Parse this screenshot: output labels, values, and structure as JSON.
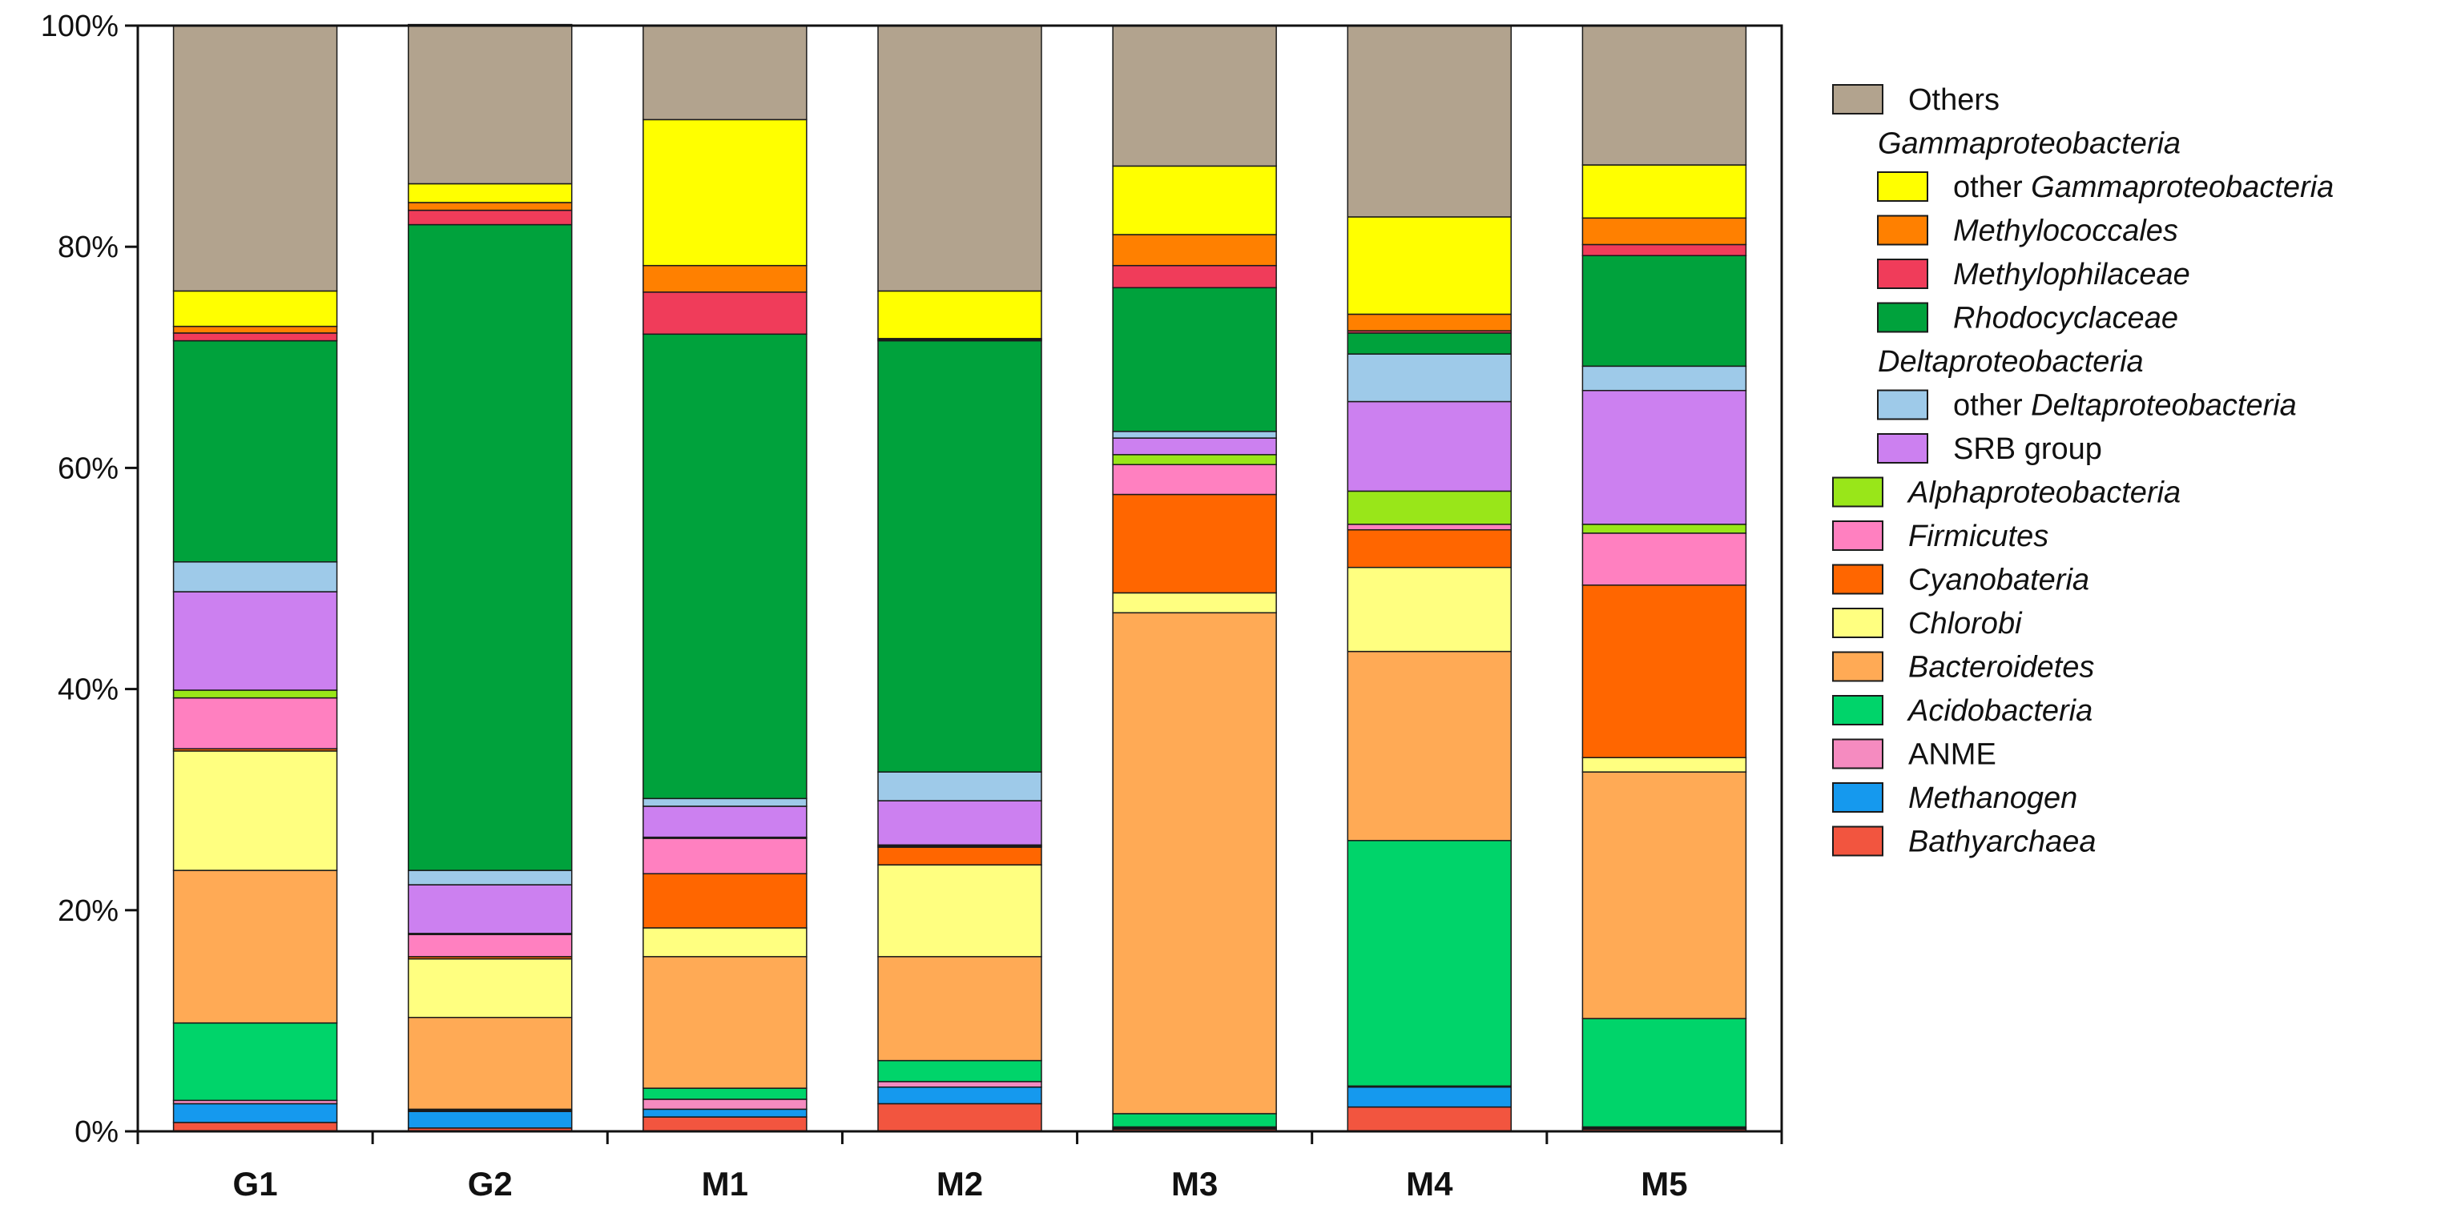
{
  "chart_data": {
    "type": "bar",
    "stacked": true,
    "percent": true,
    "categories": [
      "G1",
      "G2",
      "M1",
      "M2",
      "M3",
      "M4",
      "M5"
    ],
    "ylim": [
      0,
      100
    ],
    "yticks": [
      0,
      20,
      40,
      60,
      80,
      100
    ],
    "ytick_labels": [
      "0%",
      "20%",
      "40%",
      "60%",
      "80%",
      "100%"
    ],
    "grid": false,
    "legend_position": "right",
    "series": [
      {
        "name": "Bathyarchaea",
        "italic": true,
        "color": "#F2553F",
        "values": [
          0.8,
          0.3,
          1.3,
          2.5,
          0.2,
          2.2,
          0.2
        ]
      },
      {
        "name": "Methanogen",
        "italic": true,
        "color": "#1599EE",
        "values": [
          1.7,
          1.5,
          0.7,
          1.5,
          0.1,
          1.8,
          0.1
        ]
      },
      {
        "name": "ANME",
        "italic": false,
        "color": "#F58BC0",
        "values": [
          0.3,
          0.1,
          0.9,
          0.5,
          0.1,
          0.1,
          0.1
        ]
      },
      {
        "name": "Acidobacteria",
        "italic": true,
        "color": "#00D46A",
        "values": [
          7.0,
          0.1,
          1.0,
          1.9,
          1.2,
          22.2,
          9.8
        ]
      },
      {
        "name": "Bacteroidetes",
        "italic": true,
        "color": "#FFAA55",
        "values": [
          13.8,
          8.3,
          11.9,
          9.4,
          45.3,
          17.1,
          22.3
        ]
      },
      {
        "name": "Chlorobi",
        "italic": true,
        "color": "#FFFF80",
        "values": [
          10.8,
          5.3,
          2.6,
          8.3,
          1.8,
          7.6,
          1.3
        ]
      },
      {
        "name": "Cyanobateria",
        "italic": true,
        "color": "#FF6600",
        "values": [
          0.2,
          0.2,
          4.9,
          1.6,
          8.9,
          3.4,
          15.6
        ]
      },
      {
        "name": "Firmicutes",
        "italic": true,
        "color": "#FF80C0",
        "values": [
          4.6,
          2.0,
          3.2,
          0.1,
          2.7,
          0.5,
          4.7
        ]
      },
      {
        "name": "Alphaproteobacteria",
        "italic": true,
        "color": "#99E619",
        "values": [
          0.7,
          0.1,
          0.1,
          0.1,
          0.9,
          3.0,
          0.8
        ]
      },
      {
        "name": "SRB group",
        "italic": false,
        "color": "#CC80F0",
        "values": [
          8.9,
          4.4,
          2.8,
          4.0,
          1.5,
          8.1,
          12.1
        ]
      },
      {
        "name": "other Deltaproteobacteria",
        "italic": false,
        "italic_part": "Deltaproteobacteria",
        "color": "#9ECAE9",
        "values": [
          2.7,
          1.3,
          0.7,
          2.6,
          0.6,
          4.3,
          2.2
        ]
      },
      {
        "name": "Rhodocyclaceae",
        "italic": true,
        "color": "#00A23C",
        "values": [
          20.0,
          58.4,
          42.0,
          39.0,
          13.0,
          1.9,
          10.0
        ]
      },
      {
        "name": "Methylophilaceae",
        "italic": true,
        "color": "#F03C5A",
        "values": [
          0.7,
          1.3,
          3.8,
          0.1,
          2.0,
          0.2,
          1.0
        ]
      },
      {
        "name": "Methylococcales",
        "italic": true,
        "color": "#FF8000",
        "values": [
          0.6,
          0.7,
          2.4,
          0.1,
          2.8,
          1.5,
          2.4
        ]
      },
      {
        "name": "other Gammaproteobacteria",
        "italic": false,
        "italic_part": "Gammaproteobacteria",
        "color": "#FFFF00",
        "values": [
          3.2,
          1.7,
          13.2,
          4.3,
          6.2,
          8.8,
          4.8
        ]
      },
      {
        "name": "Others",
        "italic": false,
        "color": "#B2A38E",
        "values": [
          24.0,
          14.4,
          8.5,
          24.0,
          12.7,
          17.3,
          12.6
        ]
      }
    ],
    "legend": {
      "items": [
        {
          "kind": "entry",
          "series": "Others",
          "label": "Others",
          "italic": false
        },
        {
          "kind": "group",
          "label": "Gammaproteobacteria"
        },
        {
          "kind": "entry",
          "series": "other Gammaproteobacteria",
          "prefix": "other ",
          "label": "Gammaproteobacteria",
          "italic": true,
          "indent": true
        },
        {
          "kind": "entry",
          "series": "Methylococcales",
          "label": "Methylococcales",
          "italic": true,
          "indent": true
        },
        {
          "kind": "entry",
          "series": "Methylophilaceae",
          "label": "Methylophilaceae",
          "italic": true,
          "indent": true
        },
        {
          "kind": "entry",
          "series": "Rhodocyclaceae",
          "label": "Rhodocyclaceae",
          "italic": true,
          "indent": true
        },
        {
          "kind": "group",
          "label": "Deltaproteobacteria"
        },
        {
          "kind": "entry",
          "series": "other Deltaproteobacteria",
          "prefix": "other ",
          "label": "Deltaproteobacteria",
          "italic": true,
          "indent": true
        },
        {
          "kind": "entry",
          "series": "SRB group",
          "label": "SRB group",
          "italic": false,
          "indent": true
        },
        {
          "kind": "entry",
          "series": "Alphaproteobacteria",
          "label": "Alphaproteobacteria",
          "italic": true
        },
        {
          "kind": "entry",
          "series": "Firmicutes",
          "label": "Firmicutes",
          "italic": true
        },
        {
          "kind": "entry",
          "series": "Cyanobateria",
          "label": "Cyanobateria",
          "italic": true
        },
        {
          "kind": "entry",
          "series": "Chlorobi",
          "label": "Chlorobi",
          "italic": true
        },
        {
          "kind": "entry",
          "series": "Bacteroidetes",
          "label": "Bacteroidetes",
          "italic": true
        },
        {
          "kind": "entry",
          "series": "Acidobacteria",
          "label": "Acidobacteria",
          "italic": true
        },
        {
          "kind": "entry",
          "series": "ANME",
          "label": "ANME",
          "italic": false
        },
        {
          "kind": "entry",
          "series": "Methanogen",
          "label": "Methanogen",
          "italic": true
        },
        {
          "kind": "entry",
          "series": "Bathyarchaea",
          "label": "Bathyarchaea",
          "italic": true
        }
      ]
    }
  }
}
